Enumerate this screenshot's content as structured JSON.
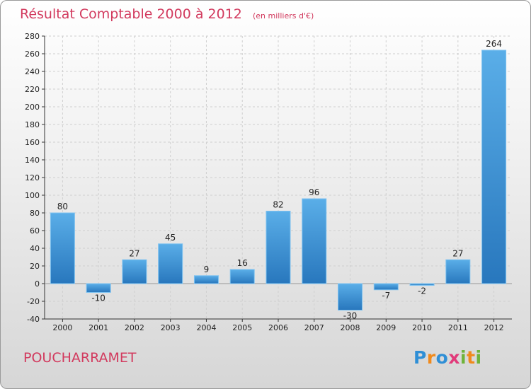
{
  "header": {
    "title": "Résultat Comptable 2000 à 2012",
    "subtitle": "(en milliers d'€)"
  },
  "footer": {
    "commune": "POUCHARRAMET",
    "logo_text": "Proxiti"
  },
  "colors": {
    "title": "#d23a5e",
    "bar_light": "#5aaee8",
    "bar_dark": "#2877bd",
    "logo_blue": "#2f8fd6",
    "logo_orange": "#f08a1c",
    "logo_pink": "#e13a7a",
    "logo_green": "#6fb33a"
  },
  "chart_data": {
    "type": "bar",
    "title": "Résultat Comptable 2000 à 2012",
    "subtitle": "(en milliers d'€)",
    "categories": [
      "2000",
      "2001",
      "2002",
      "2003",
      "2004",
      "2005",
      "2006",
      "2007",
      "2008",
      "2009",
      "2010",
      "2011",
      "2012"
    ],
    "values": [
      80,
      -10,
      27,
      45,
      9,
      16,
      82,
      96,
      -30,
      -7,
      -2,
      27,
      264
    ],
    "data_labels": [
      "80",
      "-10",
      "27",
      "45",
      "9",
      "16",
      "82",
      "96",
      "-30",
      "-7",
      "-2",
      "27",
      "264"
    ],
    "ylim": [
      -40,
      280
    ],
    "yticks": [
      -40,
      -20,
      0,
      20,
      40,
      60,
      80,
      100,
      120,
      140,
      160,
      180,
      200,
      220,
      240,
      260,
      280
    ],
    "grid": true,
    "xlabel": "",
    "ylabel": ""
  }
}
